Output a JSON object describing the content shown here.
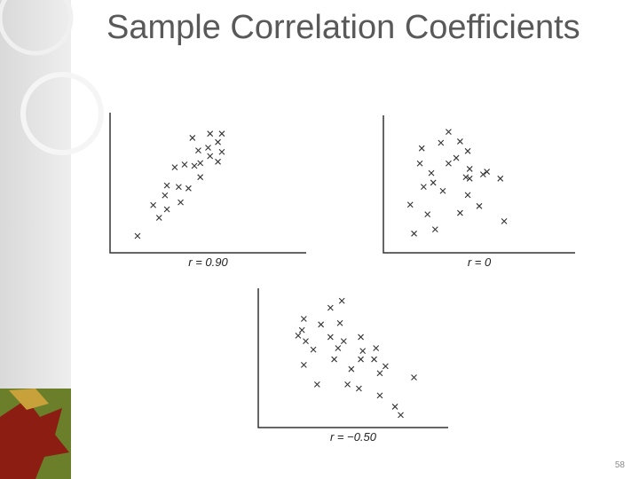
{
  "slide": {
    "title": "Sample Correlation Coefficients",
    "page_number": "58"
  },
  "chart_data": [
    {
      "type": "scatter",
      "xlabel": "r = 0.90",
      "xlim": [
        0,
        100
      ],
      "ylim": [
        0,
        100
      ],
      "color": "#333333",
      "x": [
        14,
        25,
        22,
        29,
        28,
        29,
        36,
        35,
        40,
        33,
        38,
        43,
        46,
        46,
        42,
        45,
        51,
        57,
        50,
        55,
        51,
        57,
        55
      ],
      "y": [
        12,
        25,
        34,
        31,
        41,
        48,
        36,
        47,
        46,
        61,
        63,
        62,
        54,
        64,
        82,
        73,
        85,
        85,
        75,
        79,
        69,
        72,
        65
      ]
    },
    {
      "type": "scatter",
      "xlabel": "r = 0",
      "xlim": [
        0,
        100
      ],
      "ylim": [
        0,
        100
      ],
      "color": "#333333",
      "x": [
        16,
        27,
        14,
        23,
        21,
        26,
        31,
        19,
        25,
        20,
        30,
        34,
        40,
        44,
        38,
        34,
        45,
        45,
        52,
        54,
        61,
        43,
        44,
        50,
        40,
        63
      ],
      "y": [
        14,
        17,
        35,
        28,
        48,
        51,
        45,
        65,
        58,
        76,
        80,
        88,
        81,
        74,
        69,
        65,
        61,
        54,
        57,
        59,
        54,
        55,
        42,
        34,
        29,
        23
      ]
    },
    {
      "type": "scatter",
      "xlabel": "r = −0.50",
      "xlim": [
        0,
        100
      ],
      "ylim": [
        0,
        100
      ],
      "color": "#333333",
      "x": [
        24,
        23,
        25,
        21,
        29,
        24,
        31,
        38,
        44,
        43,
        33,
        38,
        45,
        40,
        42,
        54,
        47,
        53,
        49,
        54,
        55,
        61,
        62,
        64,
        67,
        64,
        72,
        75,
        82
      ],
      "y": [
        78,
        70,
        62,
        66,
        56,
        45,
        31,
        86,
        91,
        75,
        74,
        65,
        62,
        49,
        57,
        65,
        31,
        28,
        42,
        49,
        55,
        49,
        57,
        39,
        44,
        23,
        15,
        9,
        36
      ]
    }
  ]
}
